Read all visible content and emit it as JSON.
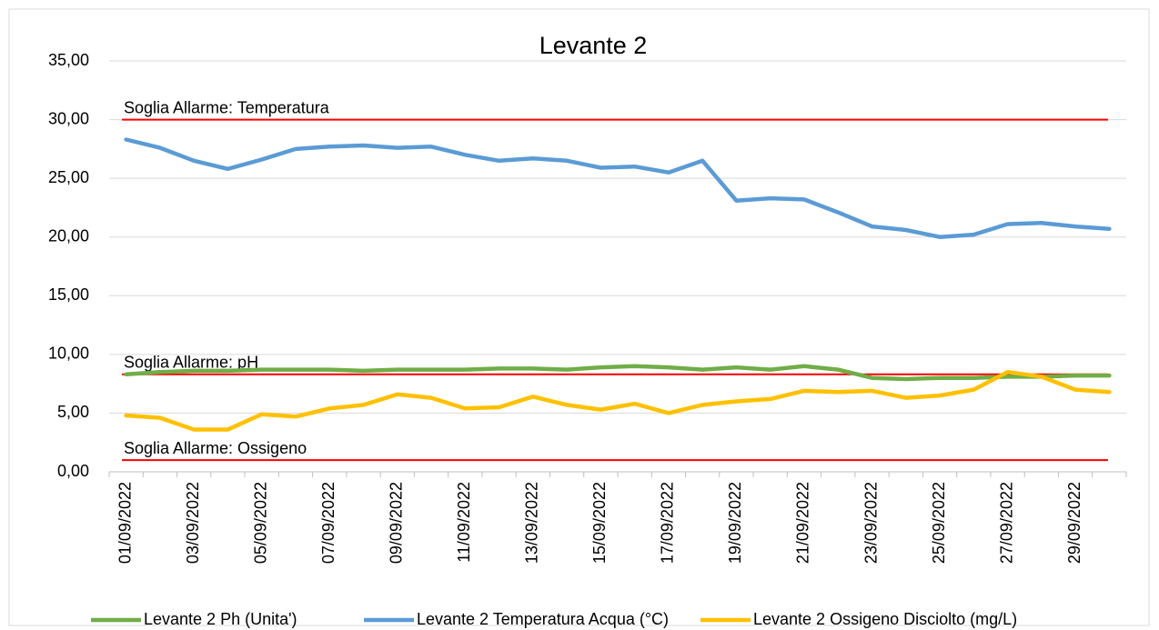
{
  "chart_data": {
    "type": "line",
    "title": "Levante 2",
    "categories": [
      "01/09/2022",
      null,
      "03/09/2022",
      null,
      "05/09/2022",
      null,
      "07/09/2022",
      null,
      "09/09/2022",
      null,
      "11/09/2022",
      null,
      "13/09/2022",
      null,
      "15/09/2022",
      null,
      "17/09/2022",
      null,
      "19/09/2022",
      null,
      "21/09/2022",
      null,
      "23/09/2022",
      null,
      "25/09/2022",
      null,
      "27/09/2022",
      null,
      "29/09/2022",
      null
    ],
    "series": [
      {
        "name": "Levante 2 Ph (Unita')",
        "color": "#70ad47",
        "values": [
          8.3,
          8.5,
          8.6,
          8.6,
          8.7,
          8.7,
          8.7,
          8.6,
          8.7,
          8.7,
          8.7,
          8.8,
          8.8,
          8.7,
          8.9,
          9.0,
          8.9,
          8.7,
          8.9,
          8.7,
          9.0,
          8.7,
          8.0,
          7.9,
          8.0,
          8.0,
          8.1,
          8.1,
          8.2,
          8.2
        ]
      },
      {
        "name": "Levante 2 Temperatura Acqua (°C)",
        "color": "#5b9bd5",
        "values": [
          28.3,
          27.6,
          26.5,
          25.8,
          26.6,
          27.5,
          27.7,
          27.8,
          27.6,
          27.7,
          27.0,
          26.5,
          26.7,
          26.5,
          25.9,
          26.0,
          25.5,
          26.5,
          23.1,
          23.3,
          23.2,
          22.1,
          20.9,
          20.6,
          20.0,
          20.2,
          21.1,
          21.2,
          20.9,
          20.7
        ]
      },
      {
        "name": "Levante 2 Ossigeno Disciolto (mg/L)",
        "color": "#ffc000",
        "values": [
          4.8,
          4.6,
          3.6,
          3.6,
          4.9,
          4.7,
          5.4,
          5.7,
          6.6,
          6.3,
          5.4,
          5.5,
          6.4,
          5.7,
          5.3,
          5.8,
          5.0,
          5.7,
          6.0,
          6.2,
          6.9,
          6.8,
          6.9,
          6.3,
          6.5,
          7.0,
          8.5,
          8.1,
          7.0,
          6.8
        ]
      }
    ],
    "thresholds": [
      {
        "label": "Soglia Allarme: Temperatura",
        "value": 30,
        "color": "#ff0000"
      },
      {
        "label": "Soglia Allarme: pH",
        "value": 8.3,
        "color": "#ff0000"
      },
      {
        "label": "Soglia Allarme: Ossigeno",
        "value": 1,
        "color": "#ff0000"
      }
    ],
    "ylim": [
      0,
      35
    ],
    "yticks": [
      {
        "value": 0,
        "label": "0,00"
      },
      {
        "value": 5,
        "label": "5,00"
      },
      {
        "value": 10,
        "label": "10,00"
      },
      {
        "value": 15,
        "label": "15,00"
      },
      {
        "value": 20,
        "label": "20,00"
      },
      {
        "value": 25,
        "label": "25,00"
      },
      {
        "value": 30,
        "label": "30,00"
      },
      {
        "value": 35,
        "label": "35,00"
      }
    ],
    "grid": true,
    "legend": "bottom"
  }
}
